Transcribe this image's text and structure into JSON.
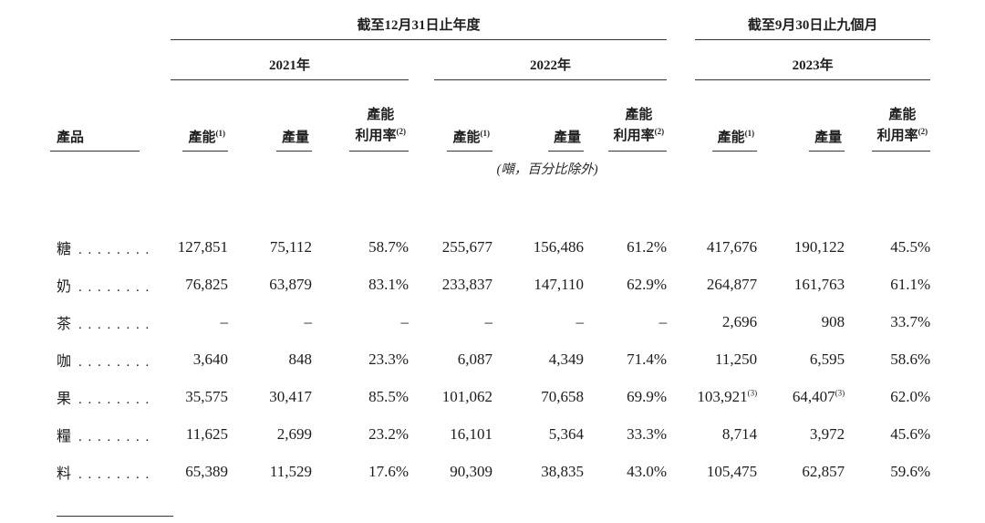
{
  "table": {
    "periods": [
      {
        "label": "截至12月31日止年度"
      },
      {
        "label": "截至9月30日止九個月"
      }
    ],
    "years": [
      "2021年",
      "2022年",
      "2023年"
    ],
    "product_header": "產品",
    "column_headers": {
      "capacity": "產能",
      "capacity_sup": "(1)",
      "output": "產量",
      "utilization_line1": "產能",
      "utilization_line2": "利用率",
      "utilization_sup": "(2)"
    },
    "unit_note": "(噸，百分比除外)",
    "dot_leader": ". . . . . . . .",
    "rows": [
      {
        "product": "糖",
        "values": [
          "127,851",
          "75,112",
          "58.7%",
          "255,677",
          "156,486",
          "61.2%",
          "417,676",
          "190,122",
          "45.5%"
        ]
      },
      {
        "product": "奶",
        "values": [
          "76,825",
          "63,879",
          "83.1%",
          "233,837",
          "147,110",
          "62.9%",
          "264,877",
          "161,763",
          "61.1%"
        ]
      },
      {
        "product": "茶",
        "values": [
          "–",
          "–",
          "–",
          "–",
          "–",
          "–",
          "2,696",
          "908",
          "33.7%"
        ]
      },
      {
        "product": "咖",
        "values": [
          "3,640",
          "848",
          "23.3%",
          "6,087",
          "4,349",
          "71.4%",
          "11,250",
          "6,595",
          "58.6%"
        ]
      },
      {
        "product": "果",
        "values": [
          "35,575",
          "30,417",
          "85.5%",
          "101,062",
          "70,658",
          "69.9%",
          "103,921",
          "64,407",
          "62.0%"
        ],
        "sups": [
          "",
          "",
          "",
          "",
          "",
          "",
          "(3)",
          "(3)",
          ""
        ]
      },
      {
        "product": "糧",
        "values": [
          "11,625",
          "2,699",
          "23.2%",
          "16,101",
          "5,364",
          "33.3%",
          "8,714",
          "3,972",
          "45.6%"
        ]
      },
      {
        "product": "料",
        "values": [
          "65,389",
          "11,529",
          "17.6%",
          "90,309",
          "38,835",
          "43.0%",
          "105,475",
          "62,857",
          "59.6%"
        ]
      }
    ]
  }
}
